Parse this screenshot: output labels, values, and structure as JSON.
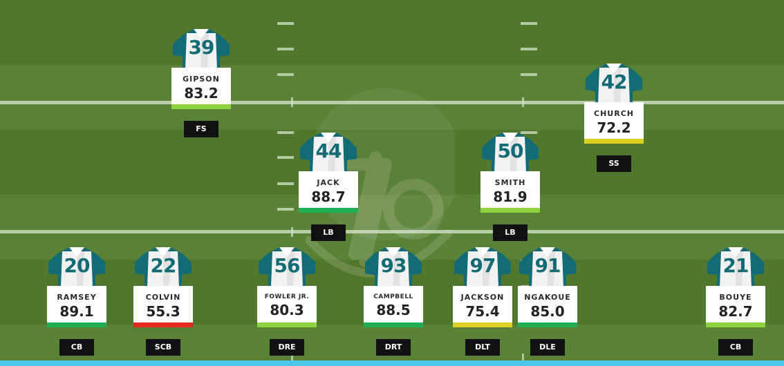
{
  "colors": {
    "jersey_teal": "#136b75",
    "grade_green": "#1fae58",
    "grade_light_green": "#8dd33f",
    "grade_yellow": "#dcd123",
    "grade_red": "#e8271e",
    "accent_bar": "#4cc6ec"
  },
  "players": [
    {
      "number": "39",
      "name": "GIPSON",
      "grade": "83.2",
      "grade_color": "#8dd33f",
      "position": "FS"
    },
    {
      "number": "42",
      "name": "CHURCH",
      "grade": "72.2",
      "grade_color": "#dcd123",
      "position": "SS"
    },
    {
      "number": "44",
      "name": "JACK",
      "grade": "88.7",
      "grade_color": "#1fae58",
      "position": "LB"
    },
    {
      "number": "50",
      "name": "SMITH",
      "grade": "81.9",
      "grade_color": "#8dd33f",
      "position": "LB"
    },
    {
      "number": "20",
      "name": "RAMSEY",
      "grade": "89.1",
      "grade_color": "#1fae58",
      "position": "CB"
    },
    {
      "number": "22",
      "name": "COLVIN",
      "grade": "55.3",
      "grade_color": "#e8271e",
      "position": "SCB"
    },
    {
      "number": "56",
      "name": "FOWLER JR.",
      "grade": "80.3",
      "grade_color": "#8dd33f",
      "position": "DRE"
    },
    {
      "number": "93",
      "name": "CAMPBELL",
      "grade": "88.5",
      "grade_color": "#1fae58",
      "position": "DRT"
    },
    {
      "number": "97",
      "name": "JACKSON",
      "grade": "75.4",
      "grade_color": "#dcd123",
      "position": "DLT"
    },
    {
      "number": "91",
      "name": "NGAKOUE",
      "grade": "85.0",
      "grade_color": "#1fae58",
      "position": "DLE"
    },
    {
      "number": "21",
      "name": "BOUYE",
      "grade": "82.7",
      "grade_color": "#8dd33f",
      "position": "CB"
    }
  ]
}
